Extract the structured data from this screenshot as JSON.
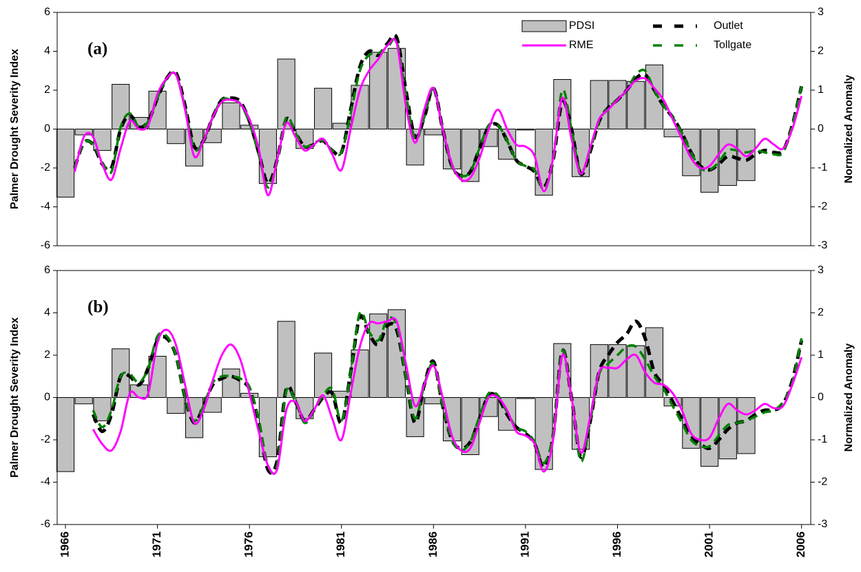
{
  "chart_data": [
    {
      "type": "combo",
      "panel_label": "(a)",
      "y_label": "Palmer Drought Severity Index",
      "y2_label": "Normalized Anomaly",
      "xlim": [
        1965.55,
        2006.5
      ],
      "ylim": [
        -6,
        6
      ],
      "yticks": [
        -6,
        -4,
        -2,
        0,
        2,
        4,
        6
      ],
      "y2lim": [
        -3,
        3
      ],
      "y2ticks": [
        -3,
        -2,
        -1,
        0,
        1,
        2,
        3
      ],
      "legend": "top-right",
      "x": [
        1966.5,
        1967,
        1967.5,
        1968,
        1968.5,
        1969,
        1969.5,
        1970,
        1970.5,
        1971,
        1971.5,
        1972,
        1972.5,
        1973,
        1973.5,
        1974,
        1974.5,
        1975,
        1975.5,
        1976,
        1976.5,
        1977,
        1977.5,
        1978,
        1978.5,
        1979,
        1979.5,
        1980,
        1980.5,
        1981,
        1981.5,
        1982,
        1982.5,
        1983,
        1983.5,
        1984,
        1984.5,
        1985,
        1985.5,
        1986,
        1986.5,
        1987,
        1987.5,
        1988,
        1988.5,
        1989,
        1989.5,
        1990,
        1990.5,
        1991,
        1991.5,
        1992,
        1992.5,
        1993,
        1993.5,
        1994,
        1994.5,
        1995,
        1995.5,
        1996,
        1996.5,
        1997,
        1997.5,
        1998,
        1998.5,
        1999,
        1999.5,
        2000,
        2000.5,
        2001,
        2001.5,
        2002,
        2002.5,
        2003,
        2003.5,
        2004,
        2004.5,
        2005,
        2005.5,
        2006
      ],
      "series": [
        {
          "name": "PDSI",
          "type": "bar",
          "color": "#c0c0c0",
          "x": [
            1966,
            1967,
            1968,
            1969,
            1970,
            1971,
            1972,
            1973,
            1974,
            1975,
            1976,
            1977,
            1978,
            1979,
            1980,
            1981,
            1982,
            1983,
            1984,
            1985,
            1986,
            1987,
            1988,
            1989,
            1990,
            1991,
            1992,
            1993,
            1994,
            1995,
            1996,
            1997,
            1998,
            1999,
            2000,
            2001,
            2002,
            2003
          ],
          "values": [
            -3.5,
            -0.3,
            -1.1,
            2.3,
            0.6,
            1.95,
            -0.75,
            -1.9,
            -0.7,
            1.35,
            0.2,
            -2.8,
            3.6,
            -1.0,
            2.1,
            0.3,
            2.25,
            3.95,
            4.15,
            -1.85,
            -0.3,
            -2.05,
            -2.7,
            -0.9,
            -1.55,
            -0.05,
            -3.4,
            2.55,
            -2.45,
            2.5,
            2.5,
            2.45,
            3.3,
            -0.4,
            -2.4,
            -3.25,
            -2.9,
            -2.65
          ]
        },
        {
          "name": "RME",
          "type": "line",
          "axis": "y2",
          "color": "#ff00ff",
          "dashed": false,
          "values": [
            -1.1,
            -0.2,
            -0.2,
            -0.9,
            -1.3,
            -0.5,
            0.2,
            0.0,
            0.1,
            0.9,
            1.3,
            1.4,
            0.5,
            -0.7,
            -0.3,
            0.3,
            0.7,
            0.75,
            0.65,
            0.25,
            -0.5,
            -1.7,
            -0.8,
            0.15,
            -0.2,
            -0.55,
            -0.4,
            -0.25,
            -0.65,
            -1.05,
            0.0,
            1.0,
            1.5,
            1.8,
            2.15,
            2.2,
            0.6,
            -0.35,
            0.5,
            1.05,
            0.0,
            -0.9,
            -1.3,
            -1.25,
            -0.75,
            0.0,
            0.5,
            0.0,
            -0.4,
            -0.45,
            -0.7,
            -1.6,
            -0.75,
            0.8,
            -0.25,
            -1.15,
            -0.5,
            0.25,
            0.5,
            0.75,
            1.0,
            1.25,
            1.3,
            1.05,
            0.75,
            0.25,
            -0.25,
            -0.75,
            -1.0,
            -0.95,
            -0.65,
            -0.4,
            -0.5,
            -0.7,
            -0.5,
            -0.25,
            -0.4,
            -0.5,
            0.0,
            0.85
          ]
        },
        {
          "name": "Outlet",
          "type": "line",
          "axis": "y2",
          "color": "#000000",
          "dashed": true,
          "values": [
            -1.0,
            -0.35,
            -0.4,
            -0.9,
            -1.0,
            0.0,
            0.35,
            0.05,
            0.2,
            0.8,
            1.3,
            1.45,
            0.6,
            -0.45,
            -0.3,
            0.3,
            0.75,
            0.8,
            0.7,
            0.2,
            -0.6,
            -1.4,
            -0.8,
            0.25,
            -0.1,
            -0.45,
            -0.4,
            -0.3,
            -0.55,
            -0.6,
            0.5,
            1.6,
            2.0,
            1.9,
            2.2,
            2.35,
            1.0,
            -0.2,
            0.3,
            1.05,
            0.0,
            -0.95,
            -1.2,
            -1.1,
            -0.5,
            0.05,
            0.1,
            -0.3,
            -0.8,
            -0.95,
            -1.1,
            -1.5,
            -0.8,
            0.7,
            0.0,
            -1.15,
            -0.6,
            0.2,
            0.55,
            0.75,
            1.0,
            1.3,
            1.4,
            1.0,
            0.6,
            0.3,
            -0.1,
            -0.6,
            -0.95,
            -1.05,
            -0.9,
            -0.7,
            -0.75,
            -0.8,
            -0.65,
            -0.55,
            -0.6,
            -0.55,
            0.1,
            1.1
          ]
        },
        {
          "name": "Tollgate",
          "type": "line",
          "axis": "y2",
          "color": "#008000",
          "dashed": true,
          "values": [
            -1.0,
            -0.35,
            -0.4,
            -0.85,
            -1.1,
            0.05,
            0.4,
            0.05,
            0.2,
            0.8,
            1.3,
            1.4,
            0.55,
            -0.5,
            -0.3,
            0.3,
            0.75,
            0.75,
            0.65,
            0.15,
            -0.65,
            -1.5,
            -0.85,
            0.3,
            -0.1,
            -0.45,
            -0.35,
            -0.3,
            -0.55,
            -0.6,
            0.4,
            1.5,
            1.9,
            1.95,
            2.1,
            2.25,
            0.9,
            -0.25,
            0.3,
            1.05,
            0.0,
            -0.95,
            -1.2,
            -1.1,
            -0.5,
            0.1,
            0.1,
            -0.3,
            -0.8,
            -0.95,
            -1.05,
            -1.55,
            -0.8,
            1.0,
            0.0,
            -1.1,
            -0.55,
            0.2,
            0.55,
            0.75,
            1.0,
            1.4,
            1.5,
            1.0,
            0.6,
            0.3,
            -0.1,
            -0.6,
            -1.0,
            -1.05,
            -0.85,
            -0.55,
            -0.55,
            -0.6,
            -0.55,
            -0.6,
            -0.65,
            -0.6,
            0.1,
            1.1
          ]
        }
      ]
    },
    {
      "type": "combo",
      "panel_label": "(b)",
      "y_label": "Palmer Drought Severity Index",
      "y2_label": "Normalized Anomaly",
      "xlim": [
        1965.55,
        2006.5
      ],
      "ylim": [
        -6,
        6
      ],
      "yticks": [
        -6,
        -4,
        -2,
        0,
        2,
        4,
        6
      ],
      "y2lim": [
        -3,
        3
      ],
      "y2ticks": [
        -3,
        -2,
        -1,
        0,
        1,
        2,
        3
      ],
      "xticks": [
        1966,
        1971,
        1976,
        1981,
        1986,
        1991,
        1996,
        2001,
        2006
      ],
      "x": [
        1966.5,
        1967,
        1967.5,
        1968,
        1968.5,
        1969,
        1969.5,
        1970,
        1970.5,
        1971,
        1971.5,
        1972,
        1972.5,
        1973,
        1973.5,
        1974,
        1974.5,
        1975,
        1975.5,
        1976,
        1976.5,
        1977,
        1977.5,
        1978,
        1978.5,
        1979,
        1979.5,
        1980,
        1980.5,
        1981,
        1981.5,
        1982,
        1982.5,
        1983,
        1983.5,
        1984,
        1984.5,
        1985,
        1985.5,
        1986,
        1986.5,
        1987,
        1987.5,
        1988,
        1988.5,
        1989,
        1989.5,
        1990,
        1990.5,
        1991,
        1991.5,
        1992,
        1992.5,
        1993,
        1993.5,
        1994,
        1994.5,
        1995,
        1995.5,
        1996,
        1996.5,
        1997,
        1997.5,
        1998,
        1998.5,
        1999,
        1999.5,
        2000,
        2000.5,
        2001,
        2001.5,
        2002,
        2002.5,
        2003,
        2003.5,
        2004,
        2004.5,
        2005,
        2005.5,
        2006
      ],
      "series": [
        {
          "type": "bar",
          "color": "#c0c0c0",
          "x": [
            1966,
            1967,
            1968,
            1969,
            1970,
            1971,
            1972,
            1973,
            1974,
            1975,
            1976,
            1977,
            1978,
            1979,
            1980,
            1981,
            1982,
            1983,
            1984,
            1985,
            1986,
            1987,
            1988,
            1989,
            1990,
            1991,
            1992,
            1993,
            1994,
            1995,
            1996,
            1997,
            1998,
            1999,
            2000,
            2001,
            2002,
            2003
          ],
          "values": [
            -3.5,
            -0.3,
            -1.1,
            2.3,
            0.6,
            1.95,
            -0.75,
            -1.9,
            -0.7,
            1.35,
            0.2,
            -2.8,
            3.6,
            -1.0,
            2.1,
            0.3,
            2.25,
            3.95,
            4.15,
            -1.85,
            -0.3,
            -2.05,
            -2.7,
            -0.9,
            -1.55,
            -0.05,
            -3.4,
            2.55,
            -2.45,
            2.5,
            2.5,
            2.45,
            3.3,
            -0.4,
            -2.4,
            -3.25,
            -2.9,
            -2.65
          ]
        },
        {
          "type": "line",
          "axis": "y2",
          "color": "#ff00ff",
          "dashed": false,
          "values": [
            null,
            null,
            -0.75,
            -1.1,
            -1.25,
            -0.8,
            0.1,
            0.0,
            0.1,
            1.3,
            1.6,
            1.25,
            0.3,
            -0.6,
            -0.3,
            0.4,
            1.0,
            1.25,
            0.9,
            0.1,
            -0.8,
            -1.6,
            -1.7,
            -0.3,
            -0.1,
            -0.55,
            -0.3,
            0.05,
            -0.5,
            -1.0,
            0.1,
            1.2,
            1.75,
            1.75,
            1.8,
            1.8,
            0.8,
            -0.2,
            0.3,
            0.75,
            0.0,
            -0.9,
            -1.25,
            -1.2,
            -0.6,
            0.0,
            0.0,
            -0.3,
            -0.8,
            -0.9,
            -1.1,
            -1.75,
            -1.0,
            1.0,
            0.0,
            -1.3,
            -0.5,
            0.6,
            0.7,
            0.7,
            0.9,
            1.0,
            0.6,
            0.35,
            0.3,
            0.1,
            -0.3,
            -0.85,
            -1.0,
            -0.95,
            -0.5,
            -0.15,
            -0.3,
            -0.4,
            -0.3,
            -0.15,
            -0.25,
            -0.2,
            0.3,
            0.95
          ]
        },
        {
          "type": "line",
          "axis": "y2",
          "color": "#000000",
          "dashed": true,
          "values": [
            null,
            null,
            -0.4,
            -0.8,
            -0.4,
            0.5,
            0.5,
            0.3,
            0.7,
            1.35,
            1.4,
            1.0,
            0.0,
            -0.6,
            -0.2,
            0.3,
            0.45,
            0.5,
            0.4,
            0.2,
            -0.6,
            -1.7,
            -1.5,
            0.2,
            -0.1,
            -0.55,
            -0.3,
            0.0,
            0.1,
            -0.6,
            0.6,
            1.9,
            1.5,
            1.25,
            1.7,
            1.6,
            0.5,
            -0.6,
            0.3,
            0.85,
            -0.2,
            -1.0,
            -1.2,
            -1.05,
            -0.5,
            0.05,
            0.0,
            -0.4,
            -0.7,
            -0.85,
            -1.1,
            -1.65,
            -0.9,
            1.1,
            0.0,
            -1.4,
            -0.6,
            0.6,
            1.0,
            1.3,
            1.5,
            1.8,
            1.4,
            0.6,
            0.3,
            -0.1,
            -0.5,
            -0.9,
            -1.1,
            -1.2,
            -1.0,
            -0.75,
            -0.6,
            -0.55,
            -0.4,
            -0.3,
            -0.3,
            -0.15,
            0.4,
            1.35
          ]
        },
        {
          "type": "line",
          "axis": "y2",
          "color": "#008000",
          "dashed": true,
          "values": [
            null,
            null,
            -0.3,
            -0.7,
            -0.3,
            0.5,
            0.55,
            0.35,
            0.7,
            1.45,
            1.45,
            1.0,
            0.0,
            -0.55,
            -0.2,
            0.35,
            0.5,
            0.5,
            0.45,
            0.25,
            -0.5,
            -1.6,
            -1.6,
            0.15,
            -0.1,
            -0.6,
            -0.3,
            0.05,
            0.2,
            -0.55,
            0.6,
            2.0,
            1.55,
            1.35,
            1.85,
            1.7,
            0.5,
            -0.5,
            0.3,
            0.8,
            -0.2,
            -1.0,
            -1.25,
            -1.05,
            -0.45,
            0.1,
            0.05,
            -0.35,
            -0.7,
            -0.8,
            -1.05,
            -1.55,
            -0.85,
            1.1,
            0.0,
            -1.5,
            -0.6,
            0.55,
            0.8,
            1.0,
            1.2,
            1.2,
            0.9,
            0.5,
            0.2,
            -0.2,
            -0.6,
            -1.0,
            -1.15,
            -1.15,
            -0.9,
            -0.65,
            -0.6,
            -0.55,
            -0.45,
            -0.35,
            -0.3,
            -0.1,
            0.35,
            1.4
          ]
        }
      ]
    }
  ]
}
